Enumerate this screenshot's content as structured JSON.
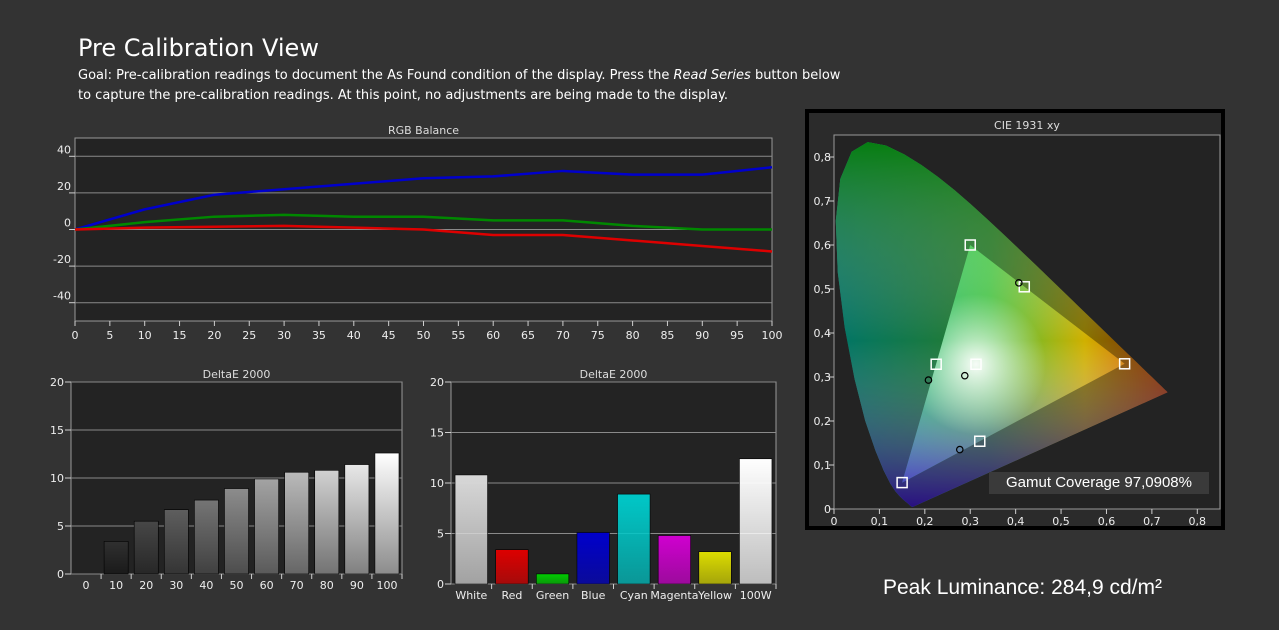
{
  "header": {
    "title": "Pre Calibration View",
    "goal_prefix": "Goal: Pre-calibration readings to document the As Found condition of the display. Press the ",
    "goal_emphasis": "Read Series",
    "goal_suffix": " button below to capture the pre-calibration readings. At this point, no adjustments are being made to the display."
  },
  "gamut_coverage": "Gamut Coverage 97,0908%",
  "peak_luminance": "Peak Luminance: 284,9 cd/m²",
  "chart_data": [
    {
      "id": "rgb-balance",
      "type": "line",
      "title": "RGB Balance",
      "x": [
        0,
        10,
        20,
        30,
        40,
        50,
        60,
        70,
        80,
        90,
        100
      ],
      "x_ticks": [
        0,
        5,
        10,
        15,
        20,
        25,
        30,
        35,
        40,
        45,
        50,
        55,
        60,
        65,
        70,
        75,
        80,
        85,
        90,
        95,
        100
      ],
      "xlim": [
        0,
        100
      ],
      "ylim": [
        -50,
        50
      ],
      "y_ticks": [
        -40,
        -20,
        0,
        20,
        40
      ],
      "grid": true,
      "series": [
        {
          "color": "#0000cc",
          "values": [
            0,
            11,
            19,
            22,
            25,
            28,
            29,
            32,
            30,
            30,
            34
          ]
        },
        {
          "color": "#008800",
          "values": [
            0,
            4,
            7,
            8,
            7,
            7,
            5,
            5,
            2,
            0,
            0
          ]
        },
        {
          "color": "#dd0000",
          "values": [
            0,
            1,
            1.5,
            2,
            1,
            0,
            -3,
            -3,
            -6,
            -9,
            -12
          ]
        }
      ]
    },
    {
      "id": "deltae-grayscale",
      "type": "bar",
      "title": "DeltaE 2000",
      "categories": [
        "0",
        "10",
        "20",
        "30",
        "40",
        "50",
        "60",
        "70",
        "80",
        "90",
        "100"
      ],
      "values": [
        0,
        3.4,
        5.5,
        6.7,
        7.7,
        8.9,
        9.9,
        10.6,
        10.8,
        11.4,
        12.6
      ],
      "ylim": [
        0,
        20
      ],
      "y_ticks": [
        0,
        5,
        10,
        15,
        20
      ],
      "grid": true
    },
    {
      "id": "deltae-colors",
      "type": "bar",
      "title": "DeltaE 2000",
      "categories": [
        "White",
        "Red",
        "Green",
        "Blue",
        "Cyan",
        "Magenta",
        "Yellow",
        "100W"
      ],
      "values": [
        10.8,
        3.4,
        1.0,
        5.1,
        8.9,
        4.8,
        3.2,
        12.4
      ],
      "colors": [
        "#d8d8d8",
        "#dd0000",
        "#00cc00",
        "#0000cc",
        "#00c8c8",
        "#d000d0",
        "#dcdc00",
        "#ffffff"
      ],
      "ylim": [
        0,
        20
      ],
      "y_ticks": [
        0,
        5,
        10,
        15,
        20
      ],
      "grid": true
    },
    {
      "id": "cie-1931",
      "type": "scatter",
      "title": "CIE 1931 xy",
      "xlim": [
        0,
        0.85
      ],
      "ylim": [
        0,
        0.85
      ],
      "x_ticks": [
        "0",
        "0,1",
        "0,2",
        "0,3",
        "0,4",
        "0,5",
        "0,6",
        "0,7",
        "0,8"
      ],
      "y_ticks": [
        "0",
        "0,1",
        "0,2",
        "0,3",
        "0,4",
        "0,5",
        "0,6",
        "0,7",
        "0,8"
      ],
      "targets": [
        {
          "name": "Red",
          "x": 0.64,
          "y": 0.33
        },
        {
          "name": "Green",
          "x": 0.3,
          "y": 0.6
        },
        {
          "name": "Blue",
          "x": 0.15,
          "y": 0.06
        },
        {
          "name": "Cyan",
          "x": 0.225,
          "y": 0.329
        },
        {
          "name": "Magenta",
          "x": 0.321,
          "y": 0.154
        },
        {
          "name": "Yellow",
          "x": 0.419,
          "y": 0.505
        },
        {
          "name": "White",
          "x": 0.3127,
          "y": 0.329
        }
      ],
      "measured": [
        {
          "name": "White",
          "x": 0.288,
          "y": 0.303
        },
        {
          "name": "Cyan",
          "x": 0.208,
          "y": 0.293
        },
        {
          "name": "Magenta",
          "x": 0.277,
          "y": 0.135
        },
        {
          "name": "Yellow",
          "x": 0.407,
          "y": 0.514
        }
      ]
    }
  ]
}
